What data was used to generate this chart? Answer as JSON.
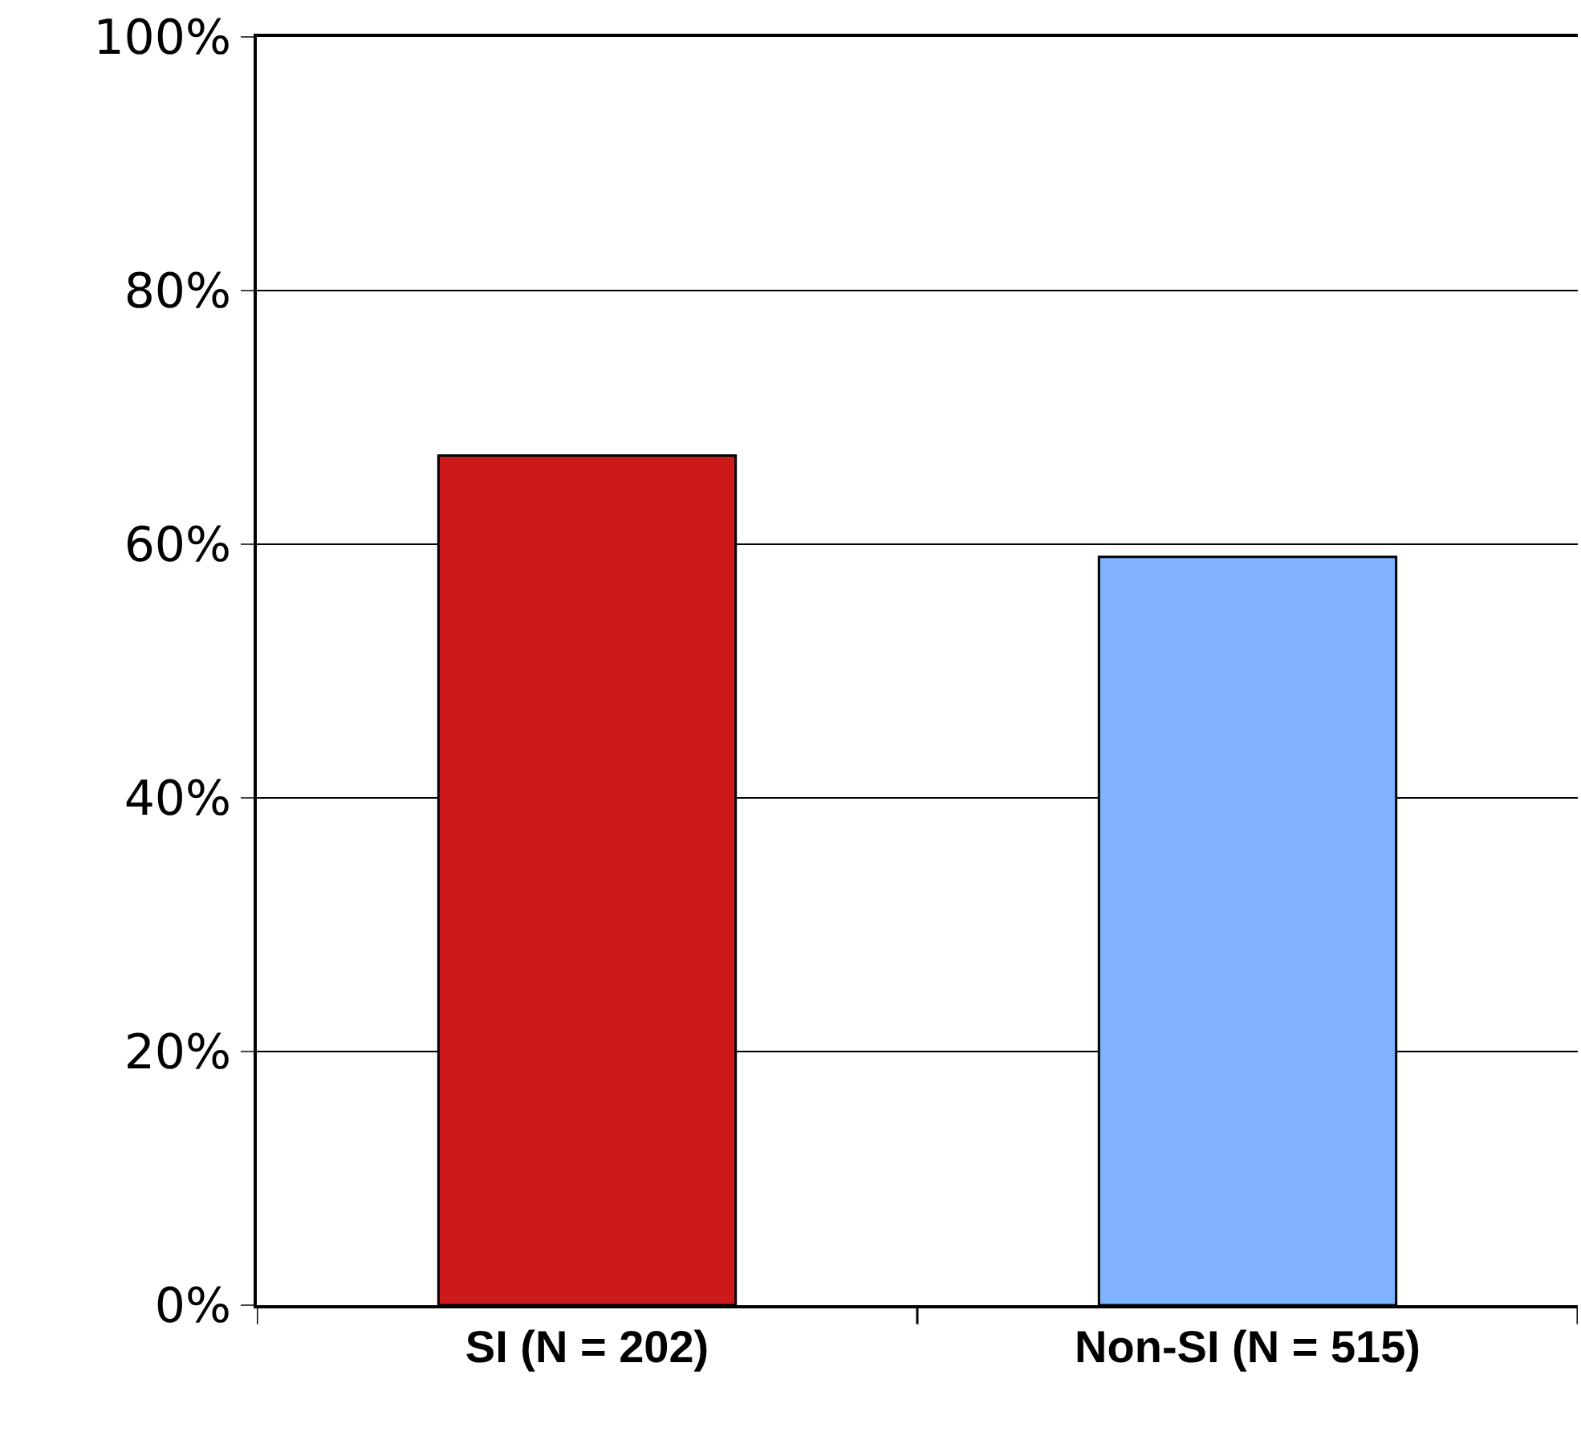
{
  "chart_data": {
    "type": "bar",
    "categories": [
      "SI (N = 202)",
      "Non-SI (N = 515)"
    ],
    "values": [
      67,
      59
    ],
    "colors": [
      "#cc1a1a",
      "#7fb2ff"
    ],
    "ylim": [
      0,
      100
    ],
    "yticks": [
      {
        "value": 0,
        "label": "0%"
      },
      {
        "value": 20,
        "label": "20%"
      },
      {
        "value": 40,
        "label": "40%"
      },
      {
        "value": 60,
        "label": "60%"
      },
      {
        "value": 80,
        "label": "80%"
      },
      {
        "value": 100,
        "label": "100%"
      }
    ],
    "grid": "y"
  }
}
